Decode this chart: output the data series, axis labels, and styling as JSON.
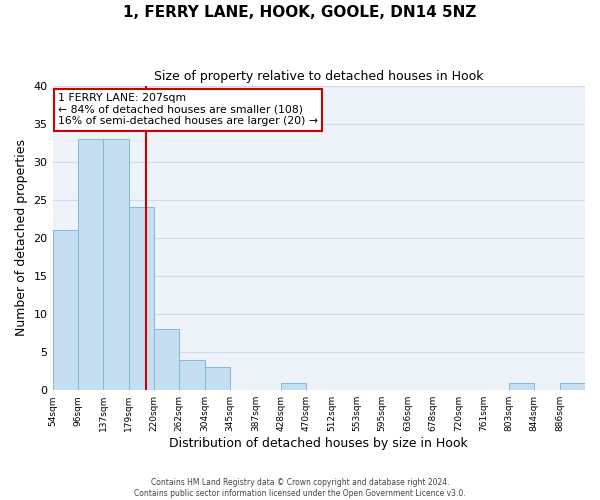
{
  "title": "1, FERRY LANE, HOOK, GOOLE, DN14 5NZ",
  "subtitle": "Size of property relative to detached houses in Hook",
  "xlabel": "Distribution of detached houses by size in Hook",
  "ylabel": "Number of detached properties",
  "bin_labels": [
    "54sqm",
    "96sqm",
    "137sqm",
    "179sqm",
    "220sqm",
    "262sqm",
    "304sqm",
    "345sqm",
    "387sqm",
    "428sqm",
    "470sqm",
    "512sqm",
    "553sqm",
    "595sqm",
    "636sqm",
    "678sqm",
    "720sqm",
    "761sqm",
    "803sqm",
    "844sqm",
    "886sqm"
  ],
  "bar_values": [
    21,
    33,
    33,
    24,
    8,
    4,
    3,
    0,
    0,
    1,
    0,
    0,
    0,
    0,
    0,
    0,
    0,
    0,
    1,
    0,
    1
  ],
  "bar_color": "#c6dff0",
  "bar_edge_color": "#7fbad6",
  "grid_color": "#d0d8ea",
  "background_color": "#eef2f9",
  "annotation_box_color": "#cc0000",
  "annotation_text": "1 FERRY LANE: 207sqm\n← 84% of detached houses are smaller (108)\n16% of semi-detached houses are larger (20) →",
  "footer_line1": "Contains HM Land Registry data © Crown copyright and database right 2024.",
  "footer_line2": "Contains public sector information licensed under the Open Government Licence v3.0.",
  "ylim": [
    0,
    40
  ],
  "yticks": [
    0,
    5,
    10,
    15,
    20,
    25,
    30,
    35,
    40
  ],
  "vline_pos": 3.68
}
